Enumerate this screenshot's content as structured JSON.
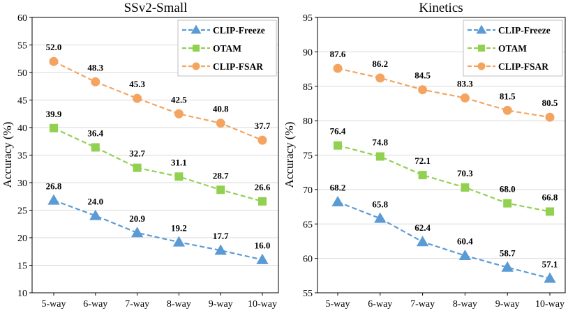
{
  "chart_data": [
    {
      "type": "line",
      "title": "SSv2-Small",
      "xlabel": "",
      "ylabel": "Accuracy (%)",
      "categories": [
        "5-way",
        "6-way",
        "7-way",
        "8-way",
        "9-way",
        "10-way"
      ],
      "ylim": [
        10,
        60
      ],
      "yticks": [
        10,
        15,
        20,
        25,
        30,
        35,
        40,
        45,
        50,
        55,
        60
      ],
      "grid": true,
      "legend": "top-right",
      "series": [
        {
          "name": "CLIP-Freeze",
          "color": "#5b9bd5",
          "marker": "triangle",
          "values": [
            26.8,
            24.0,
            20.9,
            19.2,
            17.7,
            16.0
          ],
          "labels": [
            "26.8",
            "24.0",
            "20.9",
            "19.2",
            "17.7",
            "16.0"
          ]
        },
        {
          "name": "OTAM",
          "color": "#92d050",
          "marker": "square",
          "values": [
            39.9,
            36.4,
            32.7,
            31.1,
            28.7,
            26.6
          ],
          "labels": [
            "39.9",
            "36.4",
            "32.7",
            "31.1",
            "28.7",
            "26.6"
          ]
        },
        {
          "name": "CLIP-FSAR",
          "color": "#f4a460",
          "marker": "circle",
          "values": [
            52.0,
            48.3,
            45.3,
            42.5,
            40.8,
            37.7
          ],
          "labels": [
            "52.0",
            "48.3",
            "45.3",
            "42.5",
            "40.8",
            "37.7"
          ]
        }
      ]
    },
    {
      "type": "line",
      "title": "Kinetics",
      "xlabel": "",
      "ylabel": "Accuracy (%)",
      "categories": [
        "5-way",
        "6-way",
        "7-way",
        "8-way",
        "9-way",
        "10-way"
      ],
      "ylim": [
        55,
        95
      ],
      "yticks": [
        55,
        60,
        65,
        70,
        75,
        80,
        85,
        90,
        95
      ],
      "grid": true,
      "legend": "top-right",
      "series": [
        {
          "name": "CLIP-Freeze",
          "color": "#5b9bd5",
          "marker": "triangle",
          "values": [
            68.2,
            65.8,
            62.4,
            60.4,
            58.7,
            57.1
          ],
          "labels": [
            "68.2",
            "65.8",
            "62.4",
            "60.4",
            "58.7",
            "57.1"
          ]
        },
        {
          "name": "OTAM",
          "color": "#92d050",
          "marker": "square",
          "values": [
            76.4,
            74.8,
            72.1,
            70.3,
            68.0,
            66.8
          ],
          "labels": [
            "76.4",
            "74.8",
            "72.1",
            "70.3",
            "68.0",
            "66.8"
          ]
        },
        {
          "name": "CLIP-FSAR",
          "color": "#f4a460",
          "marker": "circle",
          "values": [
            87.6,
            86.2,
            84.5,
            83.3,
            81.5,
            80.5
          ],
          "labels": [
            "87.6",
            "86.2",
            "84.5",
            "83.3",
            "81.5",
            "80.5"
          ]
        }
      ]
    }
  ]
}
